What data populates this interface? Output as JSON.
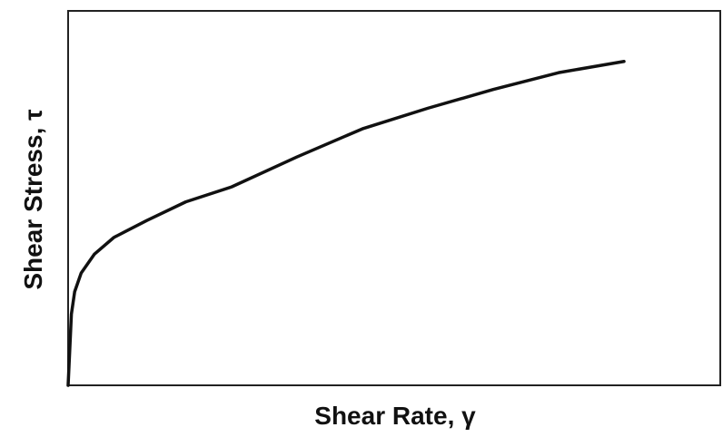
{
  "chart_data": {
    "type": "line",
    "xlabel": "Shear Rate, γ",
    "ylabel": "Shear Stress, τ",
    "x": [
      0,
      0.5,
      1,
      2,
      4,
      7,
      12,
      18,
      25,
      35,
      45,
      55,
      65,
      75,
      85
    ],
    "series": [
      {
        "color": "#111111",
        "values": [
          0,
          19,
          25,
          30,
          35,
          39.5,
          44,
          49,
          53,
          61,
          68.5,
          74,
          79,
          83.5,
          86.5
        ]
      }
    ],
    "xlim": [
      0,
      100
    ],
    "ylim": [
      0,
      100
    ],
    "grid": false
  }
}
